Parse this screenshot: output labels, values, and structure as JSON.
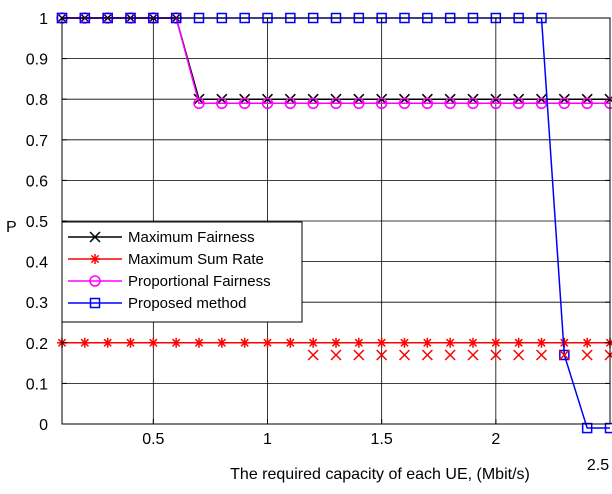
{
  "chart_data": {
    "type": "line",
    "xlabel": "The required capacity of each UE, (Mbit/s)",
    "ylabel": "P",
    "xlim": [
      0.1,
      2.5
    ],
    "ylim": [
      0,
      1
    ],
    "grid": true,
    "legend_position": "center-left",
    "x_ticks": [
      {
        "value": 0.5,
        "label": "0.5"
      },
      {
        "value": 1,
        "label": "1"
      },
      {
        "value": 1.5,
        "label": "1.5"
      },
      {
        "value": 2,
        "label": "2"
      },
      {
        "value": 2.5,
        "label": "2.5"
      }
    ],
    "y_ticks": [
      {
        "value": 0,
        "label": "0"
      },
      {
        "value": 0.1,
        "label": "0.1"
      },
      {
        "value": 0.2,
        "label": "0.2"
      },
      {
        "value": 0.3,
        "label": "0.3"
      },
      {
        "value": 0.4,
        "label": "0.4"
      },
      {
        "value": 0.5,
        "label": "0.5"
      },
      {
        "value": 0.6,
        "label": "0.6"
      },
      {
        "value": 0.7,
        "label": "0.7"
      },
      {
        "value": 0.8,
        "label": "0.8"
      },
      {
        "value": 0.9,
        "label": "0.9"
      },
      {
        "value": 1,
        "label": "1"
      }
    ],
    "series": [
      {
        "name": "Maximum Fairness",
        "color": "#000000",
        "marker": "x",
        "x": [
          0.1,
          0.2,
          0.3,
          0.4,
          0.5,
          0.6,
          0.7,
          0.8,
          0.9,
          1.0,
          1.1,
          1.2,
          1.3,
          1.4,
          1.5,
          1.6,
          1.7,
          1.8,
          1.9,
          2.0,
          2.1,
          2.2,
          2.3,
          2.4,
          2.5
        ],
        "y": [
          1,
          1,
          1,
          1,
          1,
          1,
          0.8,
          0.8,
          0.8,
          0.8,
          0.8,
          0.8,
          0.8,
          0.8,
          0.8,
          0.8,
          0.8,
          0.8,
          0.8,
          0.8,
          0.8,
          0.8,
          0.8,
          0.8,
          0.8
        ]
      },
      {
        "name": "Maximum Sum Rate",
        "color": "#ff0000",
        "marker": "*",
        "x": [
          0.1,
          0.2,
          0.3,
          0.4,
          0.5,
          0.6,
          0.7,
          0.8,
          0.9,
          1.0,
          1.1,
          1.2,
          1.3,
          1.4,
          1.5,
          1.6,
          1.7,
          1.8,
          1.9,
          2.0,
          2.1,
          2.2,
          2.3,
          2.4,
          2.5
        ],
        "y": [
          0.2,
          0.2,
          0.2,
          0.2,
          0.2,
          0.2,
          0.2,
          0.2,
          0.2,
          0.2,
          0.2,
          0.2,
          0.2,
          0.2,
          0.2,
          0.2,
          0.2,
          0.2,
          0.2,
          0.2,
          0.2,
          0.2,
          0.2,
          0.2,
          0.2
        ]
      },
      {
        "name": "Proportional Fairness",
        "color": "#ff00ff",
        "marker": "o",
        "x": [
          0.1,
          0.2,
          0.3,
          0.4,
          0.5,
          0.6,
          0.7,
          0.8,
          0.9,
          1.0,
          1.1,
          1.2,
          1.3,
          1.4,
          1.5,
          1.6,
          1.7,
          1.8,
          1.9,
          2.0,
          2.1,
          2.2,
          2.3,
          2.4,
          2.5
        ],
        "y": [
          1,
          1,
          1,
          1,
          1,
          1,
          0.79,
          0.79,
          0.79,
          0.79,
          0.79,
          0.79,
          0.79,
          0.79,
          0.79,
          0.79,
          0.79,
          0.79,
          0.79,
          0.79,
          0.79,
          0.79,
          0.79,
          0.79,
          0.79
        ]
      },
      {
        "name": "Proposed method",
        "color": "#0000ff",
        "marker": "s",
        "x": [
          0.1,
          0.2,
          0.3,
          0.4,
          0.5,
          0.6,
          0.7,
          0.8,
          0.9,
          1.0,
          1.1,
          1.2,
          1.3,
          1.4,
          1.5,
          1.6,
          1.7,
          1.8,
          1.9,
          2.0,
          2.1,
          2.2,
          2.3,
          2.4,
          2.5
        ],
        "y": [
          1,
          1,
          1,
          1,
          1,
          1,
          1,
          1,
          1,
          1,
          1,
          1,
          1,
          1,
          1,
          1,
          1,
          1,
          1,
          1,
          1,
          1,
          0.17,
          -0.01,
          -0.01
        ]
      }
    ],
    "extra_markers": {
      "color": "#ff0000",
      "marker": "x",
      "x": [
        1.2,
        1.3,
        1.4,
        1.5,
        1.6,
        1.7,
        1.8,
        1.9,
        2.0,
        2.1,
        2.2,
        2.3,
        2.4,
        2.5
      ],
      "y": [
        0.17,
        0.17,
        0.17,
        0.17,
        0.17,
        0.17,
        0.17,
        0.17,
        0.17,
        0.17,
        0.17,
        0.17,
        0.17,
        0.17
      ]
    }
  }
}
